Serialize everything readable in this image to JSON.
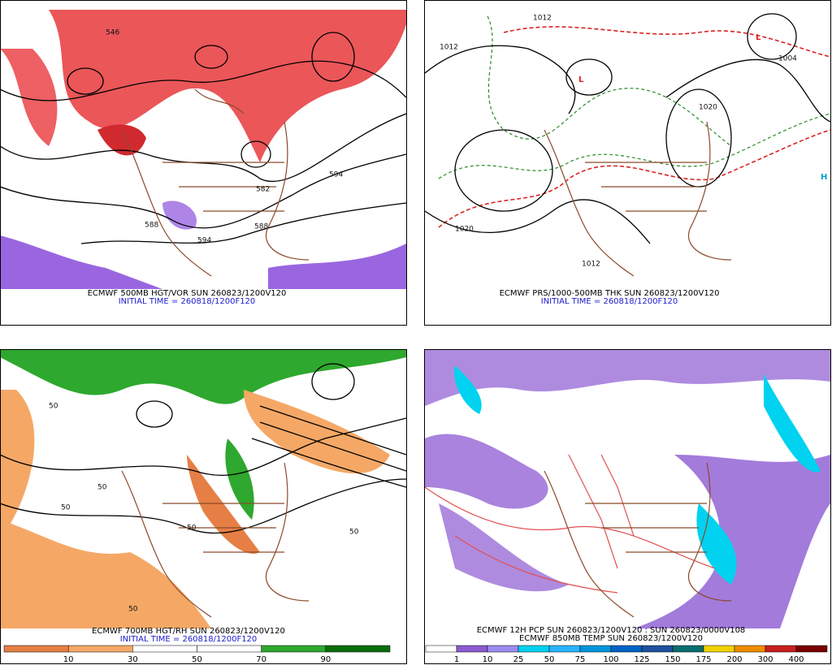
{
  "panels": [
    {
      "caption": "ECMWF 500MB HGT/VOR SUN 260823/1200V120",
      "initial_time": "INITIAL TIME = 260818/1200F120",
      "contour_labels": [
        "546",
        "588",
        "594",
        "582",
        "588",
        "594"
      ]
    },
    {
      "caption": "ECMWF PRS/1000-500MB THK SUN 260823/1200V120",
      "initial_time": "INITIAL TIME = 260818/1200F120",
      "contour_labels": [
        "1012",
        "1012",
        "1004",
        "1020",
        "1020",
        "1012"
      ]
    },
    {
      "caption": "ECMWF 700MB HGT/RH SUN 260823/1200V120",
      "initial_time": "INITIAL TIME = 260818/1200F120",
      "contour_labels": [
        "50",
        "50",
        "50",
        "50",
        "50",
        "50"
      ],
      "colorbar": {
        "labels": [
          "10",
          "30",
          "50",
          "70",
          "90"
        ],
        "colors": [
          "#e57f45",
          "#f5a866",
          "#ffffff",
          "#ffffff",
          "#2ea82e",
          "#0a6e0a"
        ]
      }
    },
    {
      "caption": "ECMWF 12H PCP SUN 260823/1200V120 : SUN 260823/0000V108",
      "initial_time": "ECMWF 850MB TEMP SUN 260823/1200V120",
      "colorbar": {
        "labels": [
          "1",
          "10",
          "25",
          "50",
          "75",
          "100",
          "125",
          "150",
          "175",
          "200",
          "300",
          "400"
        ],
        "colors": [
          "#ffffff",
          "#8c5ad2",
          "#9b8cf0",
          "#00d2f0",
          "#28b4ff",
          "#0096dc",
          "#0064c8",
          "#1e50a0",
          "#0a6e6e",
          "#f0d200",
          "#f08c00",
          "#c81e1e",
          "#780000"
        ]
      }
    }
  ]
}
